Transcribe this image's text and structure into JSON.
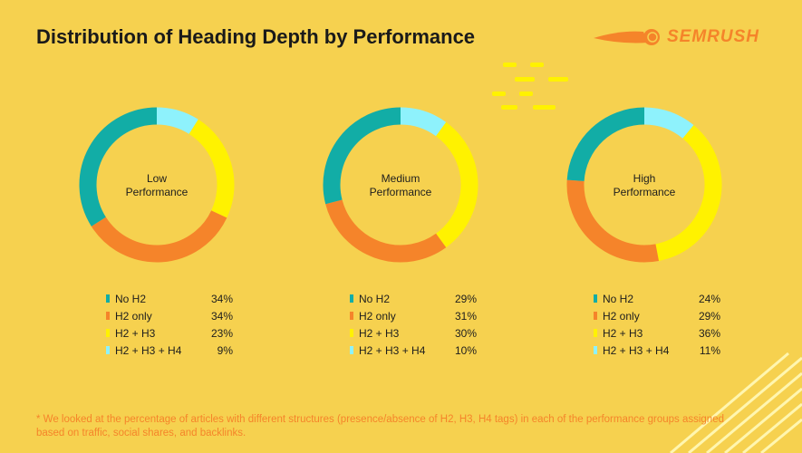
{
  "title": "Distribution of Heading Depth by Performance",
  "logo": "SEMRUSH",
  "footnote": "* We looked at the percentage of articles with different structures (presence/absence of H2, H3, H4 tags) in each of the performance groups assigned based on traffic, social shares, and backlinks.",
  "colors": {
    "No H2": "#12ada6",
    "H2 only": "#f5842a",
    "H2 + H3": "#fff200",
    "H2 + H3 + H4": "#8ef2fc"
  },
  "chart_data": [
    {
      "type": "pie",
      "title": "Low Performance",
      "title_lines": [
        "Low",
        "Performance"
      ],
      "categories": [
        "No H2",
        "H2 only",
        "H2 + H3",
        "H2 + H3 + H4"
      ],
      "values": [
        34,
        34,
        23,
        9
      ],
      "labels": [
        "34%",
        "34%",
        "23%",
        "9%"
      ]
    },
    {
      "type": "pie",
      "title": "Medium Performance",
      "title_lines": [
        "Medium",
        "Performance"
      ],
      "categories": [
        "No H2",
        "H2 only",
        "H2 + H3",
        "H2 + H3 + H4"
      ],
      "values": [
        29,
        31,
        30,
        10
      ],
      "labels": [
        "29%",
        "31%",
        "30%",
        "10%"
      ]
    },
    {
      "type": "pie",
      "title": "High Performance",
      "title_lines": [
        "High",
        "Performance"
      ],
      "categories": [
        "No H2",
        "H2 only",
        "H2 + H3",
        "H2 + H3 + H4"
      ],
      "values": [
        24,
        29,
        36,
        11
      ],
      "labels": [
        "24%",
        "29%",
        "36%",
        "11%"
      ]
    }
  ]
}
